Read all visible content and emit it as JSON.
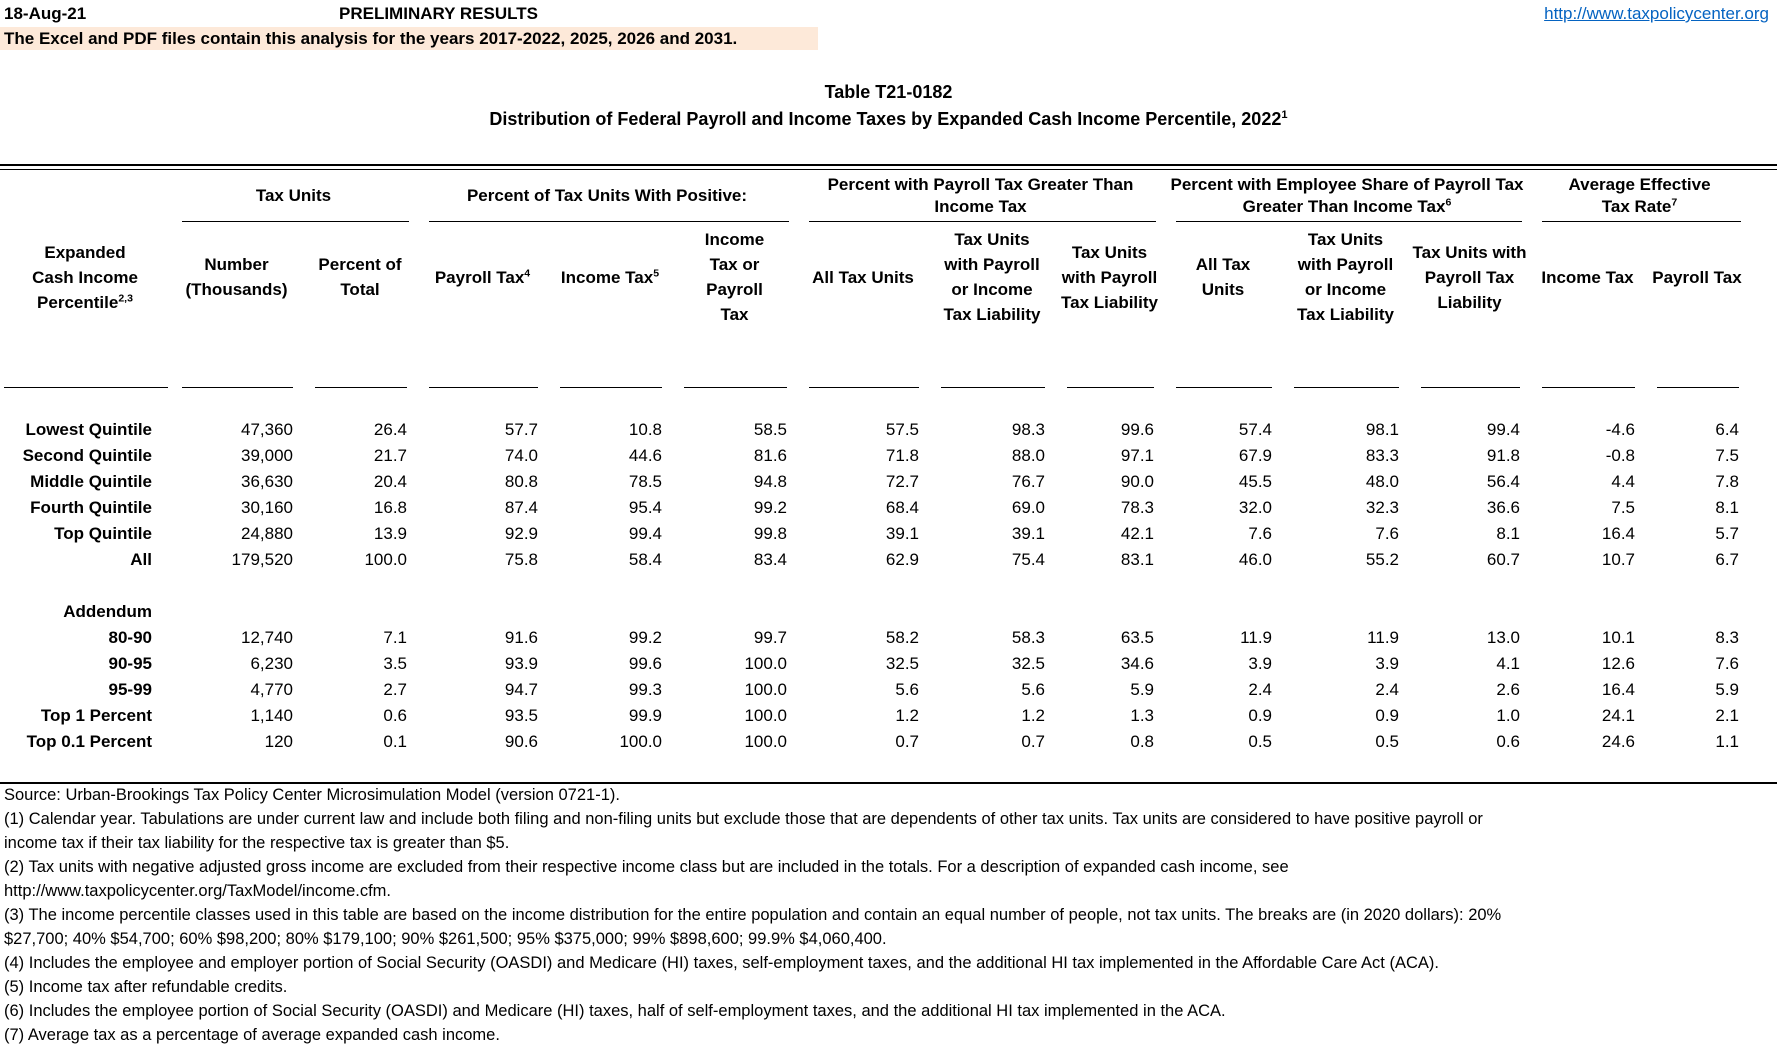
{
  "page": {
    "date": "18-Aug-21",
    "banner": "PRELIMINARY RESULTS",
    "link": "http://www.taxpolicycenter.org",
    "notice": "The Excel and PDF files contain this analysis for the years 2017-2022, 2025, 2026 and 2031.",
    "title1": "Table T21-0182",
    "title2": "Distribution of Federal Payroll and Income Taxes by Expanded Cash Income Percentile, 2022",
    "title2_sup": "1"
  },
  "table": {
    "row_header": {
      "label": "Expanded Cash Income Percentile",
      "sup": "2,3"
    },
    "groups": [
      {
        "label": "Tax Units",
        "sup": ""
      },
      {
        "label": "Percent of Tax Units With Positive:",
        "sup": ""
      },
      {
        "label": "Percent with Payroll Tax Greater Than Income Tax",
        "sup": ""
      },
      {
        "label": "Percent with Employee Share of Payroll Tax Greater Than Income Tax",
        "sup": "6"
      },
      {
        "label": "Average Effective Tax Rate",
        "sup": "7"
      }
    ],
    "columns": [
      {
        "label": "Number (Thousands)",
        "sup": ""
      },
      {
        "label": "Percent of Total",
        "sup": ""
      },
      {
        "label": "Payroll Tax",
        "sup": "4"
      },
      {
        "label": "Income Tax",
        "sup": "5"
      },
      {
        "label": "Income Tax or Payroll Tax",
        "sup": ""
      },
      {
        "label": "All Tax Units",
        "sup": ""
      },
      {
        "label": "Tax Units with Payroll or Income Tax Liability",
        "sup": ""
      },
      {
        "label": "Tax Units with Payroll Tax Liability",
        "sup": ""
      },
      {
        "label": "All Tax Units",
        "sup": ""
      },
      {
        "label": "Tax Units with Payroll or Income Tax Liability",
        "sup": ""
      },
      {
        "label": "Tax Units with Payroll Tax Liability",
        "sup": ""
      },
      {
        "label": "Income Tax",
        "sup": ""
      },
      {
        "label": "Payroll Tax",
        "sup": ""
      }
    ],
    "rows": [
      {
        "label": "Lowest Quintile",
        "values": [
          "47,360",
          "26.4",
          "57.7",
          "10.8",
          "58.5",
          "57.5",
          "98.3",
          "99.6",
          "57.4",
          "98.1",
          "99.4",
          "-4.6",
          "6.4"
        ]
      },
      {
        "label": "Second Quintile",
        "values": [
          "39,000",
          "21.7",
          "74.0",
          "44.6",
          "81.6",
          "71.8",
          "88.0",
          "97.1",
          "67.9",
          "83.3",
          "91.8",
          "-0.8",
          "7.5"
        ]
      },
      {
        "label": "Middle Quintile",
        "values": [
          "36,630",
          "20.4",
          "80.8",
          "78.5",
          "94.8",
          "72.7",
          "76.7",
          "90.0",
          "45.5",
          "48.0",
          "56.4",
          "4.4",
          "7.8"
        ]
      },
      {
        "label": "Fourth Quintile",
        "values": [
          "30,160",
          "16.8",
          "87.4",
          "95.4",
          "99.2",
          "68.4",
          "69.0",
          "78.3",
          "32.0",
          "32.3",
          "36.6",
          "7.5",
          "8.1"
        ]
      },
      {
        "label": "Top Quintile",
        "values": [
          "24,880",
          "13.9",
          "92.9",
          "99.4",
          "99.8",
          "39.1",
          "39.1",
          "42.1",
          "7.6",
          "7.6",
          "8.1",
          "16.4",
          "5.7"
        ]
      },
      {
        "label": "All",
        "values": [
          "179,520",
          "100.0",
          "75.8",
          "58.4",
          "83.4",
          "62.9",
          "75.4",
          "83.1",
          "46.0",
          "55.2",
          "60.7",
          "10.7",
          "6.7"
        ]
      }
    ],
    "addendum_label": "Addendum",
    "addendum_rows": [
      {
        "label": "80-90",
        "values": [
          "12,740",
          "7.1",
          "91.6",
          "99.2",
          "99.7",
          "58.2",
          "58.3",
          "63.5",
          "11.9",
          "11.9",
          "13.0",
          "10.1",
          "8.3"
        ]
      },
      {
        "label": "90-95",
        "values": [
          "6,230",
          "3.5",
          "93.9",
          "99.6",
          "100.0",
          "32.5",
          "32.5",
          "34.6",
          "3.9",
          "3.9",
          "4.1",
          "12.6",
          "7.6"
        ]
      },
      {
        "label": "95-99",
        "values": [
          "4,770",
          "2.7",
          "94.7",
          "99.3",
          "100.0",
          "5.6",
          "5.6",
          "5.9",
          "2.4",
          "2.4",
          "2.6",
          "16.4",
          "5.9"
        ]
      },
      {
        "label": "Top 1 Percent",
        "values": [
          "1,140",
          "0.6",
          "93.5",
          "99.9",
          "100.0",
          "1.2",
          "1.2",
          "1.3",
          "0.9",
          "0.9",
          "1.0",
          "24.1",
          "2.1"
        ]
      },
      {
        "label": "Top 0.1 Percent",
        "values": [
          "120",
          "0.1",
          "90.6",
          "100.0",
          "100.0",
          "0.7",
          "0.7",
          "0.8",
          "0.5",
          "0.5",
          "0.6",
          "24.6",
          "1.1"
        ]
      }
    ]
  },
  "footnotes": {
    "lines": [
      "Source: Urban-Brookings Tax Policy Center Microsimulation Model (version 0721-1).",
      "(1) Calendar year. Tabulations are under current law and include both filing and non-filing units but exclude those that are dependents of other tax units.  Tax units are considered to have positive payroll or",
      "income tax if their tax liability for the respective tax is greater than $5.",
      "(2) Tax units with negative adjusted gross income are excluded from their respective income class but are included in the totals. For a description of expanded cash income, see",
      "http://www.taxpolicycenter.org/TaxModel/income.cfm.",
      "(3) The income percentile classes used in this table are based on the income distribution for the entire population and contain an equal number of people, not tax units. The breaks are (in 2020 dollars): 20%",
      "$27,700; 40% $54,700; 60% $98,200; 80% $179,100; 90% $261,500; 95% $375,000; 99% $898,600; 99.9% $4,060,400.",
      "(4) Includes the employee and employer portion of Social Security (OASDI) and Medicare (HI) taxes, self-employment taxes, and the additional HI tax implemented in the Affordable Care Act (ACA).",
      "(5) Income tax after refundable credits.",
      "(6) Includes the employee portion of Social Security (OASDI) and Medicare (HI) taxes, half of self-employment taxes, and the additional HI tax implemented in the ACA.",
      "(7) Average tax as a percentage of average expanded cash income."
    ]
  }
}
